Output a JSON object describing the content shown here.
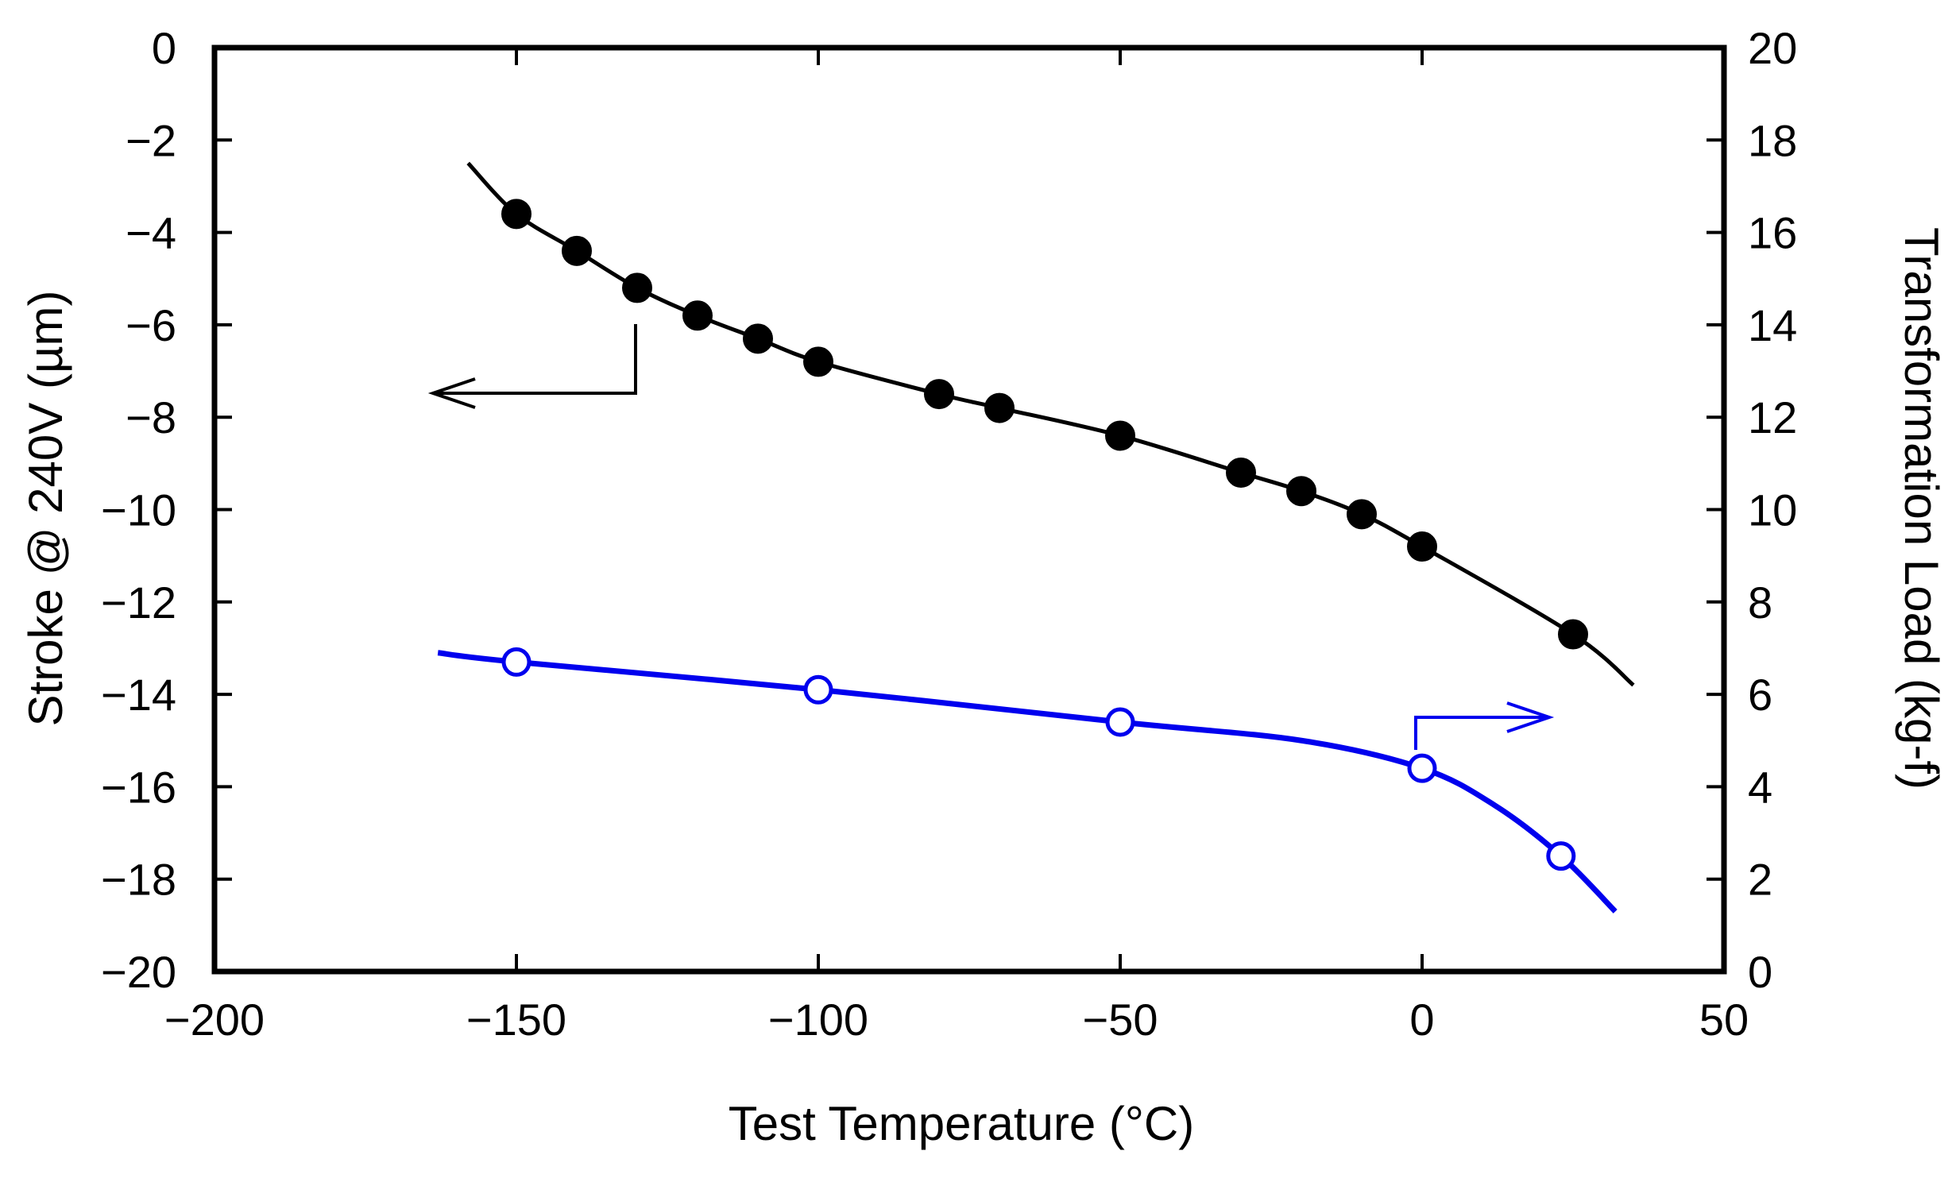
{
  "chart_data": {
    "type": "line",
    "title": "",
    "xlabel": "Test Temperature (°C)",
    "ylabel_left": "Stroke @ 240V (µm)",
    "ylabel_right": "Transformation Load (kg-f)",
    "xlim": [
      -200,
      50
    ],
    "ylim_left": [
      -20,
      0
    ],
    "ylim_right": [
      0,
      20
    ],
    "x_ticks": [
      "−200",
      "−150",
      "−100",
      "−50",
      "0",
      "50"
    ],
    "y_left_ticks": [
      "0",
      "−2",
      "−4",
      "−6",
      "−8",
      "−10",
      "−12",
      "−14",
      "−16",
      "−18",
      "−20"
    ],
    "y_right_ticks": [
      "20",
      "18",
      "16",
      "14",
      "12",
      "10",
      "8",
      "6",
      "4",
      "2",
      "0"
    ],
    "grid": false,
    "series": [
      {
        "name": "Stroke @ 240V",
        "axis": "left",
        "color": "#000000",
        "marker": "filled-circle",
        "points": [
          {
            "x": -150,
            "y": -3.6
          },
          {
            "x": -140,
            "y": -4.4
          },
          {
            "x": -130,
            "y": -5.2
          },
          {
            "x": -120,
            "y": -5.8
          },
          {
            "x": -110,
            "y": -6.3
          },
          {
            "x": -100,
            "y": -6.8
          },
          {
            "x": -80,
            "y": -7.5
          },
          {
            "x": -70,
            "y": -7.8
          },
          {
            "x": -50,
            "y": -8.4
          },
          {
            "x": -30,
            "y": -9.2
          },
          {
            "x": -20,
            "y": -9.6
          },
          {
            "x": -10,
            "y": -10.1
          },
          {
            "x": 0,
            "y": -10.8
          },
          {
            "x": 25,
            "y": -12.7
          }
        ],
        "curve": [
          {
            "x": -158,
            "y": -2.5
          },
          {
            "x": -150,
            "y": -3.6
          },
          {
            "x": -140,
            "y": -4.4
          },
          {
            "x": -130,
            "y": -5.2
          },
          {
            "x": -120,
            "y": -5.8
          },
          {
            "x": -110,
            "y": -6.3
          },
          {
            "x": -100,
            "y": -6.8
          },
          {
            "x": -80,
            "y": -7.5
          },
          {
            "x": -70,
            "y": -7.8
          },
          {
            "x": -50,
            "y": -8.4
          },
          {
            "x": -30,
            "y": -9.2
          },
          {
            "x": -20,
            "y": -9.6
          },
          {
            "x": -10,
            "y": -10.1
          },
          {
            "x": 0,
            "y": -10.8
          },
          {
            "x": 25,
            "y": -12.7
          },
          {
            "x": 35,
            "y": -13.8
          }
        ]
      },
      {
        "name": "Transformation Load",
        "axis": "right",
        "color": "#0000ee",
        "marker": "open-circle",
        "points": [
          {
            "x": -150,
            "y": 6.7
          },
          {
            "x": -100,
            "y": 6.1
          },
          {
            "x": -50,
            "y": 5.4
          },
          {
            "x": 0,
            "y": 4.4
          },
          {
            "x": 23,
            "y": 2.5
          }
        ],
        "curve": [
          {
            "x": -163,
            "y": 6.9
          },
          {
            "x": -150,
            "y": 6.7
          },
          {
            "x": -100,
            "y": 6.1
          },
          {
            "x": -50,
            "y": 5.4
          },
          {
            "x": -20,
            "y": 5.0
          },
          {
            "x": 0,
            "y": 4.4
          },
          {
            "x": 12,
            "y": 3.6
          },
          {
            "x": 23,
            "y": 2.5
          },
          {
            "x": 32,
            "y": 1.3
          }
        ]
      }
    ]
  }
}
